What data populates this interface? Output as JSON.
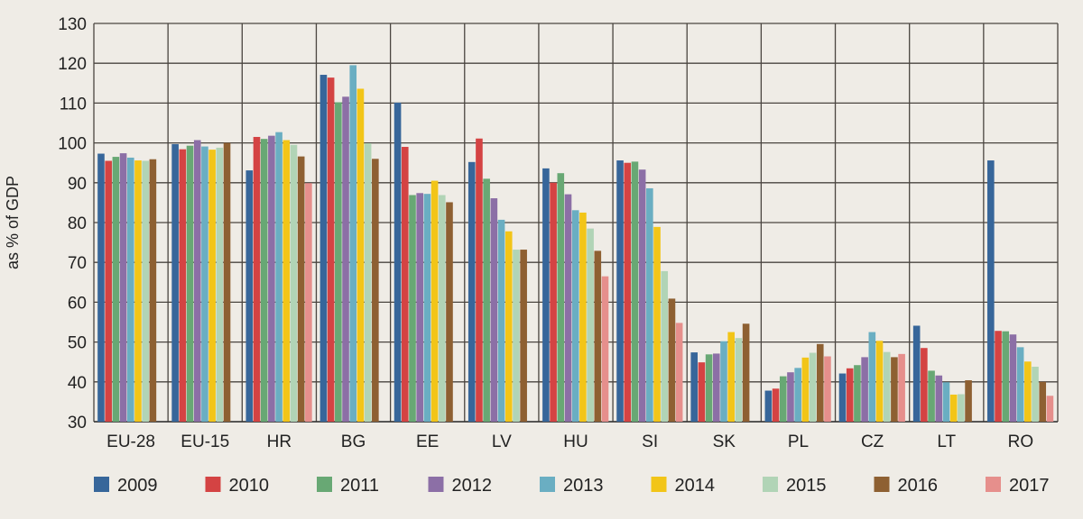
{
  "chart_data": {
    "type": "bar",
    "ylabel": "as % of GDP",
    "ylim": [
      30,
      130
    ],
    "yticks": [
      30,
      40,
      50,
      60,
      70,
      80,
      90,
      100,
      110,
      120,
      130
    ],
    "grid": true,
    "legend_position": "bottom",
    "categories": [
      "EU-28",
      "EU-15",
      "HR",
      "BG",
      "EE",
      "LV",
      "HU",
      "SI",
      "SK",
      "PL",
      "CZ",
      "LT",
      "RO"
    ],
    "series": [
      {
        "name": "2009",
        "color": "#37669a",
        "values": [
          97.3,
          99.7,
          93.1,
          117.1,
          110.1,
          95.2,
          93.6,
          95.6,
          47.4,
          37.8,
          42.1,
          54.1,
          95.6
        ]
      },
      {
        "name": "2010",
        "color": "#d44343",
        "values": [
          95.5,
          98.4,
          101.5,
          116.4,
          99.0,
          101.1,
          90.0,
          95.0,
          44.9,
          38.3,
          43.4,
          48.5,
          52.8
        ]
      },
      {
        "name": "2011",
        "color": "#68a874",
        "values": [
          96.5,
          99.3,
          101.0,
          110.2,
          86.9,
          91.0,
          92.4,
          95.3,
          46.9,
          41.4,
          44.2,
          42.8,
          52.7
        ]
      },
      {
        "name": "2012",
        "color": "#8c6fa6",
        "values": [
          97.4,
          100.7,
          101.8,
          111.6,
          87.4,
          86.1,
          87.1,
          93.3,
          47.1,
          42.4,
          46.2,
          41.6,
          51.9
        ]
      },
      {
        "name": "2013",
        "color": "#6aaec2",
        "values": [
          96.3,
          99.1,
          102.7,
          119.5,
          87.2,
          80.7,
          83.1,
          88.6,
          50.2,
          43.5,
          52.5,
          39.9,
          48.7
        ]
      },
      {
        "name": "2014",
        "color": "#f2c518",
        "values": [
          95.6,
          98.3,
          100.7,
          113.6,
          90.5,
          77.8,
          82.5,
          78.9,
          52.5,
          46.1,
          50.3,
          36.8,
          45.1
        ]
      },
      {
        "name": "2015",
        "color": "#b1d4b6",
        "values": [
          95.5,
          98.8,
          99.5,
          99.9,
          86.9,
          73.2,
          78.5,
          67.8,
          51.0,
          47.3,
          47.5,
          36.9,
          43.8
        ]
      },
      {
        "name": "2016",
        "color": "#8e6032",
        "values": [
          95.9,
          100.0,
          96.6,
          96.0,
          85.1,
          73.2,
          72.9,
          60.9,
          54.6,
          49.5,
          46.2,
          40.4,
          40.0
        ]
      },
      {
        "name": "2017",
        "color": "#e68f8c",
        "values": [
          null,
          null,
          89.9,
          null,
          null,
          null,
          66.5,
          54.8,
          null,
          46.4,
          47.0,
          null,
          36.5
        ]
      }
    ]
  }
}
